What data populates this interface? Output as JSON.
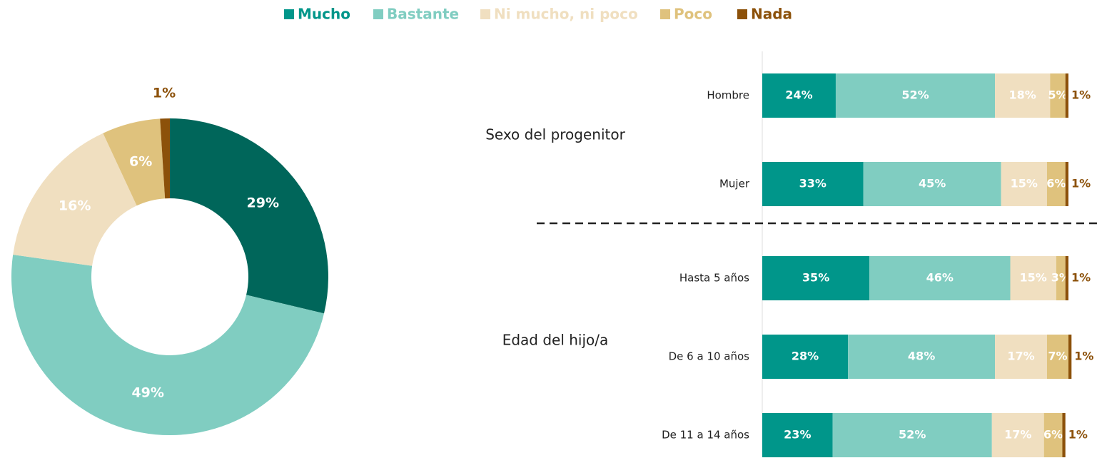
{
  "chart_data": [
    {
      "type": "donut",
      "values": [
        29,
        49,
        16,
        6,
        1
      ],
      "value_labels": [
        "29%",
        "49%",
        "16%",
        "6%",
        "1%"
      ],
      "colors": [
        "#00665a",
        "#80cdc1",
        "#f0dfc0",
        "#dfc27d",
        "#8c510a"
      ]
    },
    {
      "type": "stacked-bar-horizontal",
      "groups": [
        {
          "name": "Sexo del progenitor",
          "categories": [
            "Hombre",
            "Mujer"
          ]
        },
        {
          "name": "Edad del hijo/a",
          "categories": [
            "Hasta 5 años",
            "De 6 a 10 años",
            "De 11 a 14 años"
          ]
        }
      ],
      "series": [
        {
          "name": "Mucho",
          "color": "#00968a",
          "values": [
            24,
            33,
            35,
            28,
            23
          ],
          "value_labels": [
            "24%",
            "33%",
            "35%",
            "28%",
            "23%"
          ]
        },
        {
          "name": "Bastante",
          "color": "#80cdc1",
          "values": [
            52,
            45,
            46,
            48,
            52
          ],
          "value_labels": [
            "52%",
            "45%",
            "46%",
            "48%",
            "52%"
          ]
        },
        {
          "name": "Ni mucho, ni poco",
          "color": "#f0dfc0",
          "values": [
            18,
            15,
            15,
            17,
            17
          ],
          "value_labels": [
            "18%",
            "15%",
            "15%",
            "17%",
            "17%"
          ]
        },
        {
          "name": "Poco",
          "color": "#dfc27d",
          "values": [
            5,
            6,
            3,
            7,
            6
          ],
          "value_labels": [
            "5%",
            "6%",
            "3%",
            "7%",
            "6%"
          ]
        },
        {
          "name": "Nada",
          "color": "#8c510a",
          "values": [
            1,
            1,
            1,
            1,
            1
          ],
          "value_labels": [
            "1%",
            "1%",
            "1%",
            "1%",
            "1%"
          ]
        }
      ]
    }
  ]
}
